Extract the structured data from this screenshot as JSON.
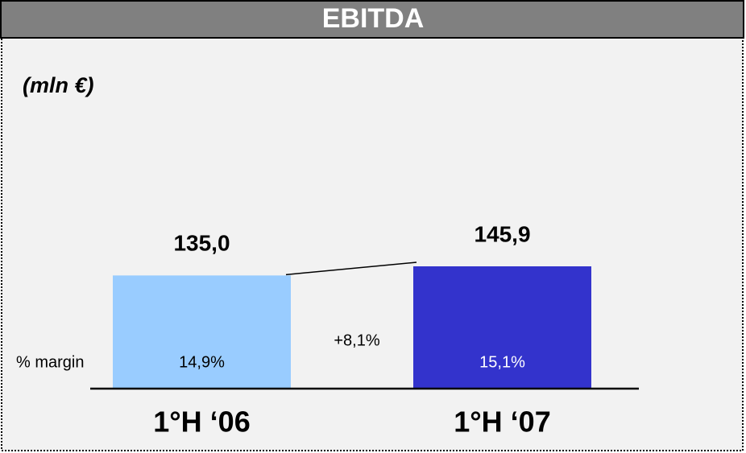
{
  "chart_data": {
    "type": "bar",
    "title": "EBITDA",
    "subtitle": "(mln €)",
    "categories": [
      "1°H ‘06",
      "1°H ‘07"
    ],
    "values": [
      135.0,
      145.9
    ],
    "value_labels": [
      "135,0",
      "145,9"
    ],
    "colors": [
      "#99ccff",
      "#3333cc"
    ],
    "margin_label": "% margin",
    "margin_labels": [
      "14,9%",
      "15,1%"
    ],
    "growth_label": "+8,1%"
  }
}
